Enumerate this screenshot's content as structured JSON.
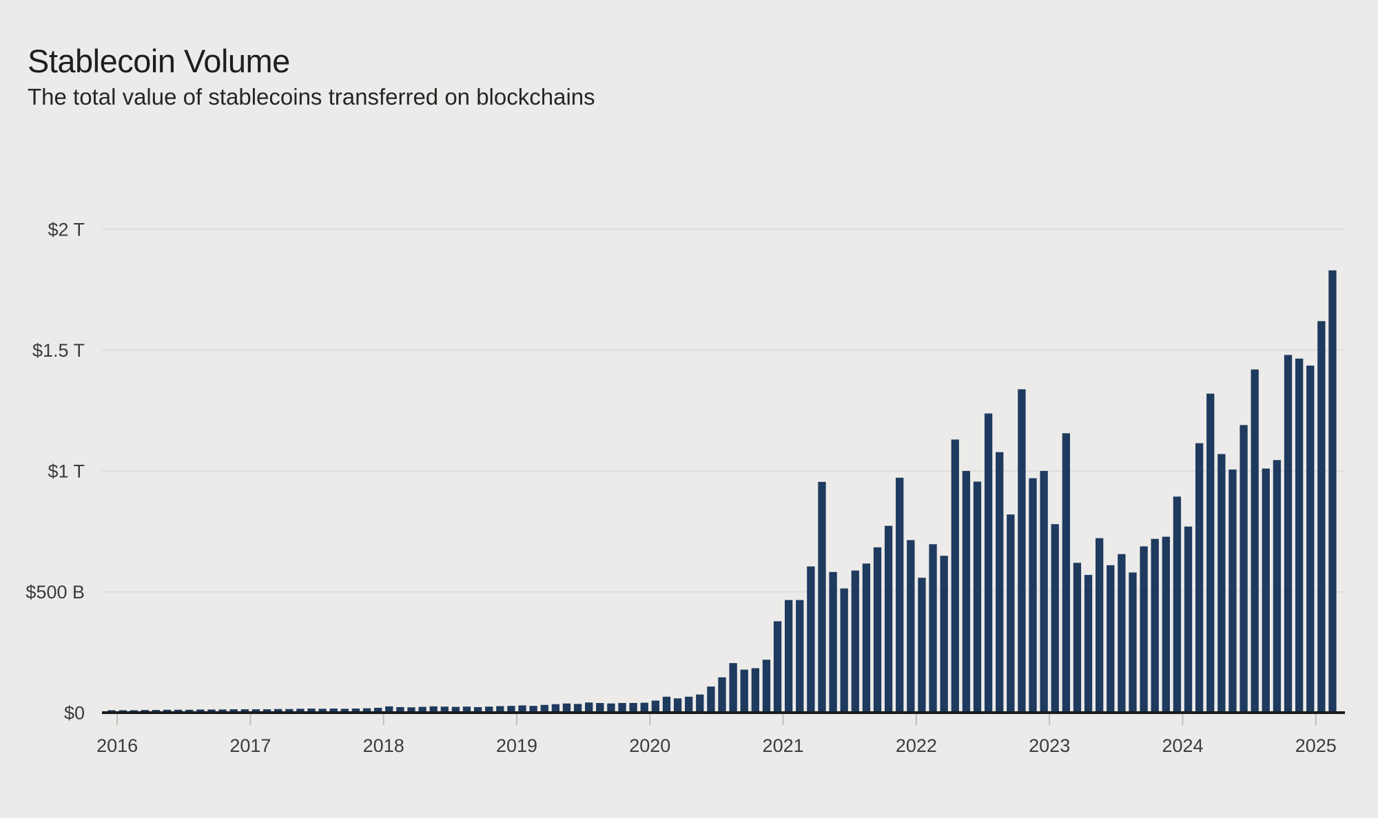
{
  "header": {
    "title": "Stablecoin Volume",
    "subtitle": "The total value of stablecoins transferred on blockchains"
  },
  "colors": {
    "background": "#ECEBE9",
    "bar": "#1E3A5E",
    "gridline": "#DEDDDB",
    "axis_line": "#191C20",
    "tick_mark": "#BFBEBC",
    "axis_text": "#3B3B39",
    "title_text": "#1E1E1C"
  },
  "chart_data": {
    "type": "bar",
    "title": "Stablecoin Volume",
    "subtitle": "The total value of stablecoins transferred on blockchains",
    "unit": "USD billions per month",
    "grid": true,
    "legend": "none",
    "ylim": [
      0,
      2000
    ],
    "y_ticks": [
      {
        "value": 2000,
        "label": "$2 T"
      },
      {
        "value": 1500,
        "label": "$1.5 T"
      },
      {
        "value": 1000,
        "label": "$1 T"
      },
      {
        "value": 500,
        "label": "$500 B"
      },
      {
        "value": 0,
        "label": "$0"
      }
    ],
    "x_ticks": [
      "2016",
      "2017",
      "2018",
      "2019",
      "2020",
      "2021",
      "2022",
      "2023",
      "2024",
      "2025"
    ],
    "categories": [
      "2015-12",
      "2016-01",
      "2016-02",
      "2016-03",
      "2016-04",
      "2016-05",
      "2016-06",
      "2016-07",
      "2016-08",
      "2016-09",
      "2016-10",
      "2016-11",
      "2016-12",
      "2017-01",
      "2017-02",
      "2017-03",
      "2017-04",
      "2017-05",
      "2017-06",
      "2017-07",
      "2017-08",
      "2017-09",
      "2017-10",
      "2017-11",
      "2017-12",
      "2018-01",
      "2018-02",
      "2018-03",
      "2018-04",
      "2018-05",
      "2018-06",
      "2018-07",
      "2018-08",
      "2018-09",
      "2018-10",
      "2018-11",
      "2018-12",
      "2019-01",
      "2019-02",
      "2019-03",
      "2019-04",
      "2019-05",
      "2019-06",
      "2019-07",
      "2019-08",
      "2019-09",
      "2019-10",
      "2019-11",
      "2019-12",
      "2020-01",
      "2020-02",
      "2020-03",
      "2020-04",
      "2020-05",
      "2020-06",
      "2020-07",
      "2020-08",
      "2020-09",
      "2020-10",
      "2020-11",
      "2020-12",
      "2021-01",
      "2021-02",
      "2021-03",
      "2021-04",
      "2021-05",
      "2021-06",
      "2021-07",
      "2021-08",
      "2021-09",
      "2021-10",
      "2021-11",
      "2021-12",
      "2022-01",
      "2022-02",
      "2022-03",
      "2022-04",
      "2022-05",
      "2022-06",
      "2022-07",
      "2022-08",
      "2022-09",
      "2022-10",
      "2022-11",
      "2022-12",
      "2023-01",
      "2023-02",
      "2023-03",
      "2023-04",
      "2023-05",
      "2023-06",
      "2023-07",
      "2023-08",
      "2023-09",
      "2023-10",
      "2023-11",
      "2023-12",
      "2024-01",
      "2024-02",
      "2024-03",
      "2024-04",
      "2024-05",
      "2024-06",
      "2024-07",
      "2024-08",
      "2024-09",
      "2024-10",
      "2024-11",
      "2024-12",
      "2025-01",
      "2025-02"
    ],
    "values": [
      10,
      10,
      10,
      11,
      11,
      12,
      12,
      12,
      13,
      13,
      13,
      14,
      14,
      14,
      14,
      15,
      15,
      16,
      17,
      16,
      17,
      16,
      17,
      18,
      20,
      26,
      23,
      22,
      24,
      26,
      25,
      24,
      25,
      23,
      25,
      27,
      28,
      30,
      28,
      32,
      35,
      38,
      36,
      42,
      40,
      38,
      40,
      40,
      41,
      50,
      66,
      59,
      66,
      75,
      108,
      146,
      205,
      178,
      184,
      219,
      378,
      466,
      466,
      605,
      955,
      582,
      514,
      588,
      617,
      684,
      773,
      972,
      714,
      558,
      697,
      649,
      1130,
      1000,
      956,
      1238,
      1078,
      820,
      1338,
      970,
      1000,
      780,
      1156,
      620,
      570,
      722,
      610,
      656,
      580,
      688,
      719,
      728,
      894,
      770,
      1115,
      1320,
      1070,
      1006,
      1190,
      1420,
      1010,
      1045,
      1480,
      1465,
      1436,
      1620,
      1830
    ]
  }
}
